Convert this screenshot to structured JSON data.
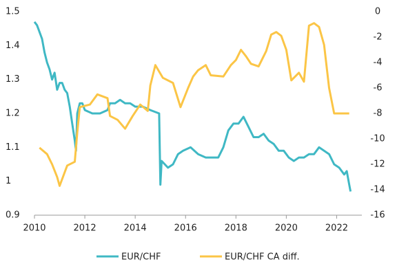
{
  "chart_data": {
    "type": "line",
    "xlim": [
      2010,
      2023
    ],
    "xticks": [
      2010,
      2012,
      2014,
      2016,
      2018,
      2020,
      2022
    ],
    "ylim": [
      0.9,
      1.5
    ],
    "yticks": [
      0.9,
      1,
      1.1,
      1.2,
      1.3,
      1.4,
      1.5
    ],
    "y2lim": [
      -16,
      0
    ],
    "y2ticks": [
      -16,
      -14,
      -12,
      -10,
      -8,
      -6,
      -4,
      -2,
      0
    ],
    "grid": false,
    "legend": "bottom",
    "series": [
      {
        "name": "EUR/CHF",
        "color": "#3fb8c4",
        "axis": "y",
        "x": [
          2010.0,
          2010.1,
          2010.3,
          2010.4,
          2010.5,
          2010.6,
          2010.7,
          2010.8,
          2010.9,
          2011.0,
          2011.1,
          2011.2,
          2011.3,
          2011.4,
          2011.5,
          2011.6,
          2011.65,
          2011.7,
          2011.8,
          2011.9,
          2012.0,
          2012.3,
          2012.6,
          2012.9,
          2013.0,
          2013.2,
          2013.4,
          2013.6,
          2013.8,
          2014.0,
          2014.3,
          2014.6,
          2014.95,
          2015.0,
          2015.05,
          2015.3,
          2015.5,
          2015.7,
          2015.9,
          2016.2,
          2016.5,
          2016.8,
          2017.0,
          2017.3,
          2017.5,
          2017.7,
          2017.9,
          2018.1,
          2018.3,
          2018.5,
          2018.7,
          2018.9,
          2019.1,
          2019.3,
          2019.5,
          2019.7,
          2019.9,
          2020.1,
          2020.3,
          2020.5,
          2020.7,
          2020.9,
          2021.1,
          2021.3,
          2021.5,
          2021.7,
          2021.9,
          2022.1,
          2022.3,
          2022.4,
          2022.5,
          2022.55
        ],
        "values": [
          1.47,
          1.46,
          1.42,
          1.38,
          1.35,
          1.33,
          1.3,
          1.32,
          1.27,
          1.29,
          1.29,
          1.27,
          1.26,
          1.22,
          1.17,
          1.12,
          1.09,
          1.2,
          1.23,
          1.23,
          1.21,
          1.2,
          1.2,
          1.21,
          1.23,
          1.23,
          1.24,
          1.23,
          1.23,
          1.22,
          1.22,
          1.21,
          1.2,
          0.99,
          1.06,
          1.04,
          1.05,
          1.08,
          1.09,
          1.1,
          1.08,
          1.07,
          1.07,
          1.07,
          1.1,
          1.15,
          1.17,
          1.17,
          1.19,
          1.16,
          1.13,
          1.13,
          1.14,
          1.12,
          1.11,
          1.09,
          1.09,
          1.07,
          1.06,
          1.07,
          1.07,
          1.08,
          1.08,
          1.1,
          1.09,
          1.08,
          1.05,
          1.04,
          1.02,
          1.03,
          0.99,
          0.97
        ]
      },
      {
        "name": "EUR/CHF CA diff.",
        "color": "#fbc546",
        "axis": "y2",
        "x": [
          2010.2,
          2010.5,
          2010.7,
          2010.9,
          2011.0,
          2011.3,
          2011.6,
          2011.7,
          2011.8,
          2012.2,
          2012.5,
          2012.9,
          2013.0,
          2013.3,
          2013.6,
          2013.9,
          2014.2,
          2014.5,
          2014.6,
          2014.8,
          2015.1,
          2015.5,
          2015.8,
          2016.1,
          2016.3,
          2016.5,
          2016.8,
          2017.0,
          2017.5,
          2017.8,
          2018.0,
          2018.2,
          2018.4,
          2018.6,
          2018.9,
          2019.2,
          2019.4,
          2019.6,
          2019.8,
          2020.0,
          2020.2,
          2020.5,
          2020.7,
          2020.9,
          2021.1,
          2021.3,
          2021.5,
          2021.7,
          2021.9,
          2022.5
        ],
        "values": [
          -10.7,
          -11.2,
          -12,
          -13,
          -13.7,
          -12.1,
          -11.8,
          -9.5,
          -7.5,
          -7.3,
          -6.5,
          -6.8,
          -8.2,
          -8.5,
          -9.2,
          -8.2,
          -7.3,
          -7.8,
          -5.8,
          -4.2,
          -5.2,
          -5.6,
          -7.5,
          -6,
          -5.1,
          -4.6,
          -4.2,
          -5,
          -5.1,
          -4.2,
          -3.8,
          -3,
          -3.5,
          -4.1,
          -4.3,
          -3.1,
          -1.8,
          -1.6,
          -1.9,
          -3,
          -5.4,
          -4.8,
          -5.5,
          -1.1,
          -0.9,
          -1.2,
          -2.6,
          -6,
          -8,
          -8
        ]
      }
    ]
  }
}
